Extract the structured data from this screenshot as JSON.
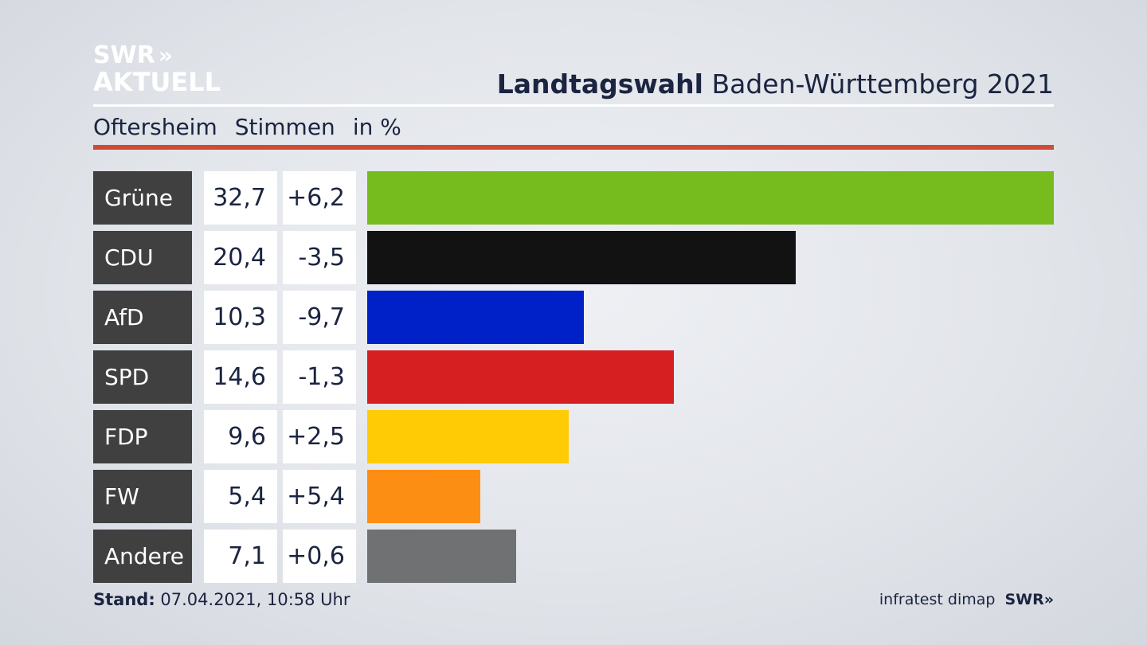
{
  "logo": {
    "line1": "SWR",
    "line2": "AKTUELL",
    "chevrons": "»"
  },
  "header": {
    "title_bold": "Landtagswahl",
    "title_rest": " Baden-Württemberg 2021"
  },
  "subheader": {
    "place": "Oftersheim",
    "measure": "Stimmen",
    "unit": "in %"
  },
  "colors": {
    "accent_rule": "#cf4b33",
    "label_bg": "#404040"
  },
  "chart_data": {
    "type": "bar",
    "orientation": "horizontal",
    "categories": [
      "Grüne",
      "CDU",
      "AfD",
      "SPD",
      "FDP",
      "FW",
      "Andere"
    ],
    "values": [
      32.7,
      20.4,
      10.3,
      14.6,
      9.6,
      5.4,
      7.1
    ],
    "value_labels": [
      "32,7",
      "20,4",
      "10,3",
      "14,6",
      "9,6",
      "5,4",
      "7,1"
    ],
    "diff_labels": [
      "+6,2",
      "-3,5",
      "-9,7",
      "-1,3",
      "+2,5",
      "+5,4",
      "+0,6"
    ],
    "bar_colors": [
      "#77bc1f",
      "#121212",
      "#0021c8",
      "#d51f20",
      "#ffcb05",
      "#fd8e14",
      "#707173"
    ],
    "xlim": [
      0,
      32.7
    ],
    "grid": false
  },
  "footer": {
    "stand_label": "Stand:",
    "stand_value": " 07.04.2021, 10:58 Uhr",
    "source": "infratest dimap",
    "brand": "SWR",
    "brand_chevrons": "»"
  }
}
